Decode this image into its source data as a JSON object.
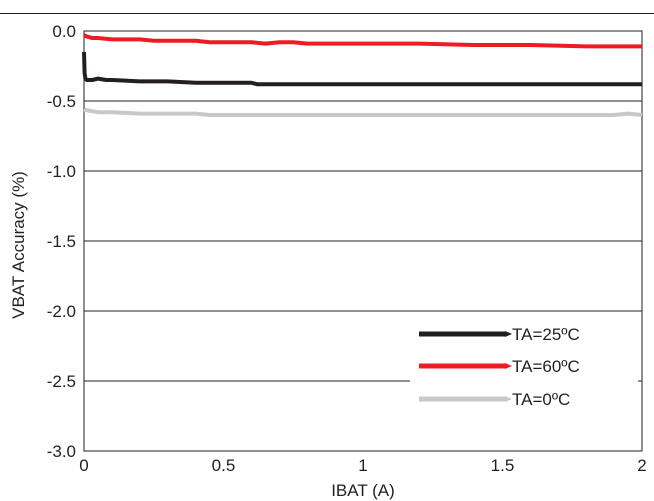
{
  "chart_data": {
    "type": "line",
    "title": "",
    "xlabel": "IBAT (A)",
    "ylabel": "VBAT Accuracy (%)",
    "xlim": [
      0,
      2
    ],
    "ylim": [
      -3.0,
      0.0
    ],
    "x_ticks": [
      "0",
      "0.5",
      "1",
      "1.5",
      "2"
    ],
    "x_tick_values": [
      0,
      0.5,
      1,
      1.5,
      2
    ],
    "y_ticks": [
      "0.0",
      "-0.5",
      "-1.0",
      "-1.5",
      "-2.0",
      "-2.5",
      "-3.0"
    ],
    "y_tick_values": [
      0,
      -0.5,
      -1.0,
      -1.5,
      -2.0,
      -2.5,
      -3.0
    ],
    "grid": "horizontal",
    "legend_position": "bottom-right",
    "series": [
      {
        "name": "TA=25ºC",
        "color": "#231f20",
        "x": [
          0,
          0.002,
          0.005,
          0.01,
          0.03,
          0.05,
          0.08,
          0.1,
          0.2,
          0.3,
          0.4,
          0.45,
          0.5,
          0.6,
          0.62,
          0.8,
          1.0,
          1.2,
          1.4,
          1.6,
          1.8,
          2.0
        ],
        "y": [
          -0.15,
          -0.3,
          -0.34,
          -0.35,
          -0.35,
          -0.34,
          -0.35,
          -0.35,
          -0.36,
          -0.36,
          -0.37,
          -0.37,
          -0.37,
          -0.37,
          -0.38,
          -0.38,
          -0.38,
          -0.38,
          -0.38,
          -0.38,
          -0.38,
          -0.38
        ]
      },
      {
        "name": "TA=60ºC",
        "color": "#ed1c24",
        "x": [
          0,
          0.01,
          0.03,
          0.05,
          0.1,
          0.2,
          0.25,
          0.3,
          0.4,
          0.45,
          0.55,
          0.6,
          0.65,
          0.7,
          0.75,
          0.8,
          1.0,
          1.2,
          1.4,
          1.6,
          1.8,
          2.0
        ],
        "y": [
          -0.03,
          -0.04,
          -0.05,
          -0.05,
          -0.06,
          -0.06,
          -0.07,
          -0.07,
          -0.07,
          -0.08,
          -0.08,
          -0.08,
          -0.09,
          -0.08,
          -0.08,
          -0.09,
          -0.09,
          -0.09,
          -0.1,
          -0.1,
          -0.11,
          -0.11
        ]
      },
      {
        "name": "TA=0ºC",
        "color": "#c7c8ca",
        "x": [
          0,
          0.02,
          0.05,
          0.1,
          0.2,
          0.3,
          0.4,
          0.45,
          0.5,
          0.6,
          0.8,
          1.0,
          1.2,
          1.4,
          1.6,
          1.8,
          1.9,
          1.95,
          2.0
        ],
        "y": [
          -0.56,
          -0.57,
          -0.58,
          -0.58,
          -0.59,
          -0.59,
          -0.59,
          -0.6,
          -0.6,
          -0.6,
          -0.6,
          -0.6,
          -0.6,
          -0.6,
          -0.6,
          -0.6,
          -0.6,
          -0.59,
          -0.6
        ]
      }
    ]
  }
}
